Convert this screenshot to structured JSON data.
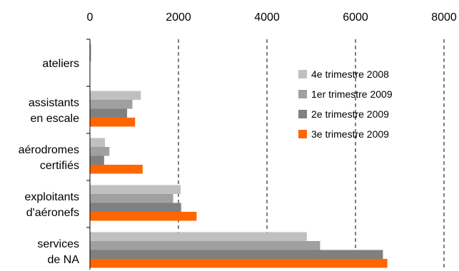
{
  "chart_data": {
    "type": "bar",
    "orientation": "horizontal",
    "categories": [
      [
        "ateliers"
      ],
      [
        "assistants",
        "en escale"
      ],
      [
        "aérodromes",
        "certifiés"
      ],
      [
        "exploitants",
        "d'aéronefs"
      ],
      [
        "services",
        "de NA"
      ]
    ],
    "series": [
      {
        "name": "4e trimestre 2008",
        "color": "#c0c0c0",
        "values": [
          30,
          1150,
          340,
          2050,
          4900
        ]
      },
      {
        "name": "1er trimestre 2009",
        "color": "#a0a0a0",
        "values": [
          20,
          960,
          440,
          1880,
          5200
        ]
      },
      {
        "name": "2e trimestre 2009",
        "color": "#808080",
        "values": [
          0,
          840,
          320,
          2060,
          6620
        ]
      },
      {
        "name": "3e trimestre 2009",
        "color": "#ff6600",
        "values": [
          0,
          1020,
          1190,
          2410,
          6720
        ]
      }
    ],
    "xlim": [
      0,
      8000
    ],
    "xticks": [
      "0",
      "2000",
      "4000",
      "6000",
      "8000"
    ],
    "xtick_values": [
      0,
      2000,
      4000,
      6000,
      8000
    ],
    "grid": "vertical dashed",
    "legend_position": "right"
  }
}
